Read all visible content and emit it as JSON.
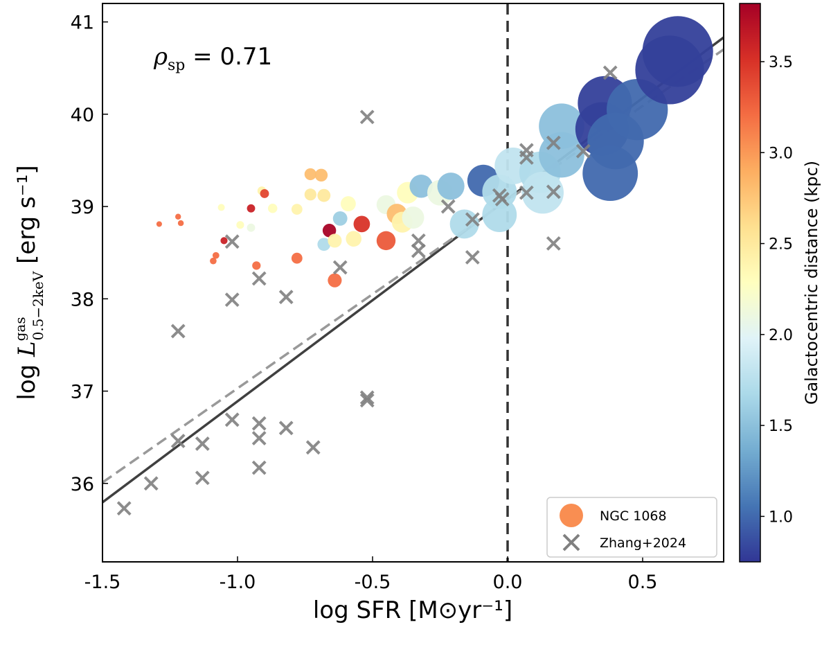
{
  "chart_data": {
    "type": "scatter",
    "xlabel": "log SFR [M⊙yr⁻¹]",
    "ylabel": "log L^gas_0.5−2keV [erg s⁻¹]",
    "xlim": [
      -1.5,
      0.8
    ],
    "ylim": [
      35.15,
      41.2
    ],
    "xticks": [
      "-1.5",
      "-1.0",
      "-0.5",
      "0.0",
      "0.5"
    ],
    "yticks": [
      "36",
      "37",
      "38",
      "39",
      "40",
      "41"
    ],
    "grid": false,
    "annotation": "ρsp = 0.71",
    "annotation_parts": {
      "rho": "ρ",
      "sub": "sp",
      "rest": " = 0.71"
    },
    "legend_position": "bottom-right",
    "colorbar": {
      "label": "Galactocentric distance (kpc)",
      "range": [
        0.75,
        3.82
      ],
      "ticks": [
        "1.0",
        "1.5",
        "2.0",
        "2.5",
        "3.0",
        "3.5"
      ],
      "colormap": "RdYlBu_r"
    },
    "reference_line_x": 0.0,
    "series": [
      {
        "name": "NGC 1068",
        "marker": "circle",
        "legend_color": "#f98e52",
        "points": [
          {
            "x": -1.29,
            "y": 38.81,
            "d": 3.2
          },
          {
            "x": -1.22,
            "y": 38.89,
            "d": 3.2
          },
          {
            "x": -1.21,
            "y": 38.82,
            "d": 3.2
          },
          {
            "x": -1.06,
            "y": 38.99,
            "d": 2.3
          },
          {
            "x": -0.99,
            "y": 38.8,
            "d": 2.3
          },
          {
            "x": -0.95,
            "y": 38.77,
            "d": 2.1
          },
          {
            "x": -0.95,
            "y": 38.98,
            "d": 3.6
          },
          {
            "x": -0.91,
            "y": 39.17,
            "d": 2.4
          },
          {
            "x": -0.9,
            "y": 39.14,
            "d": 3.4
          },
          {
            "x": -0.87,
            "y": 38.98,
            "d": 2.3
          },
          {
            "x": -0.78,
            "y": 38.97,
            "d": 2.4
          },
          {
            "x": -1.05,
            "y": 38.63,
            "d": 3.6
          },
          {
            "x": -1.08,
            "y": 38.47,
            "d": 3.2
          },
          {
            "x": -1.09,
            "y": 38.41,
            "d": 3.2
          },
          {
            "x": -0.93,
            "y": 38.36,
            "d": 3.2
          },
          {
            "x": -0.78,
            "y": 38.44,
            "d": 3.2
          },
          {
            "x": -0.73,
            "y": 39.35,
            "d": 2.8
          },
          {
            "x": -0.69,
            "y": 39.34,
            "d": 2.8
          },
          {
            "x": -0.73,
            "y": 39.13,
            "d": 2.5
          },
          {
            "x": -0.68,
            "y": 39.12,
            "d": 2.5
          },
          {
            "x": -0.59,
            "y": 39.03,
            "d": 2.3
          },
          {
            "x": -0.66,
            "y": 38.74,
            "d": 3.8
          },
          {
            "x": -0.62,
            "y": 38.87,
            "d": 1.6
          },
          {
            "x": -0.68,
            "y": 38.59,
            "d": 1.7
          },
          {
            "x": -0.64,
            "y": 38.63,
            "d": 2.4
          },
          {
            "x": -0.57,
            "y": 38.65,
            "d": 2.4
          },
          {
            "x": -0.54,
            "y": 38.81,
            "d": 3.5
          },
          {
            "x": -0.45,
            "y": 38.63,
            "d": 3.3
          },
          {
            "x": -0.64,
            "y": 38.2,
            "d": 3.2
          },
          {
            "x": -0.45,
            "y": 39.02,
            "d": 2.1
          },
          {
            "x": -0.41,
            "y": 38.92,
            "d": 2.8
          },
          {
            "x": -0.39,
            "y": 38.83,
            "d": 2.4
          },
          {
            "x": -0.37,
            "y": 39.15,
            "d": 2.3
          },
          {
            "x": -0.35,
            "y": 38.88,
            "d": 2.1
          },
          {
            "x": -0.32,
            "y": 39.22,
            "d": 1.5
          },
          {
            "x": -0.25,
            "y": 39.15,
            "d": 2.1
          },
          {
            "x": -0.21,
            "y": 39.22,
            "d": 1.5
          },
          {
            "x": -0.09,
            "y": 39.28,
            "d": 1.0
          },
          {
            "x": -0.16,
            "y": 38.81,
            "d": 1.7
          },
          {
            "x": -0.03,
            "y": 39.16,
            "d": 1.7
          },
          {
            "x": -0.03,
            "y": 38.91,
            "d": 1.7
          },
          {
            "x": 0.02,
            "y": 39.44,
            "d": 1.8
          },
          {
            "x": 0.12,
            "y": 39.37,
            "d": 1.7
          },
          {
            "x": 0.13,
            "y": 39.15,
            "d": 1.8
          },
          {
            "x": 0.2,
            "y": 39.87,
            "d": 1.5
          },
          {
            "x": 0.2,
            "y": 39.56,
            "d": 1.5
          },
          {
            "x": 0.36,
            "y": 40.12,
            "d": 0.8
          },
          {
            "x": 0.35,
            "y": 39.84,
            "d": 0.8
          },
          {
            "x": 0.48,
            "y": 40.05,
            "d": 1.0
          },
          {
            "x": 0.4,
            "y": 39.71,
            "d": 1.0
          },
          {
            "x": 0.38,
            "y": 39.36,
            "d": 1.0
          },
          {
            "x": 0.6,
            "y": 40.48,
            "d": 0.8
          },
          {
            "x": 0.63,
            "y": 40.68,
            "d": 0.8
          }
        ]
      },
      {
        "name": "Zhang+2024",
        "marker": "x",
        "color": "#808080",
        "points": [
          {
            "x": -0.52,
            "y": 39.97
          },
          {
            "x": -1.02,
            "y": 38.62
          },
          {
            "x": -0.92,
            "y": 38.22
          },
          {
            "x": -1.02,
            "y": 37.99
          },
          {
            "x": -0.82,
            "y": 38.02
          },
          {
            "x": -1.22,
            "y": 37.65
          },
          {
            "x": -0.62,
            "y": 38.34
          },
          {
            "x": 0.38,
            "y": 40.45
          },
          {
            "x": -0.22,
            "y": 39.0
          },
          {
            "x": -0.13,
            "y": 38.86
          },
          {
            "x": -0.33,
            "y": 38.63
          },
          {
            "x": -0.33,
            "y": 38.52
          },
          {
            "x": -0.13,
            "y": 38.45
          },
          {
            "x": -0.03,
            "y": 39.12
          },
          {
            "x": -0.02,
            "y": 39.08
          },
          {
            "x": 0.07,
            "y": 39.61
          },
          {
            "x": 0.07,
            "y": 39.53
          },
          {
            "x": 0.17,
            "y": 39.69
          },
          {
            "x": 0.28,
            "y": 39.6
          },
          {
            "x": 0.07,
            "y": 39.15
          },
          {
            "x": 0.17,
            "y": 39.16
          },
          {
            "x": 0.17,
            "y": 38.6
          },
          {
            "x": -0.52,
            "y": 36.93
          },
          {
            "x": -0.52,
            "y": 36.9
          },
          {
            "x": -1.02,
            "y": 36.69
          },
          {
            "x": -1.22,
            "y": 36.46
          },
          {
            "x": -1.13,
            "y": 36.43
          },
          {
            "x": -0.92,
            "y": 36.65
          },
          {
            "x": -0.92,
            "y": 36.49
          },
          {
            "x": -0.92,
            "y": 36.17
          },
          {
            "x": -0.82,
            "y": 36.6
          },
          {
            "x": -0.72,
            "y": 36.39
          },
          {
            "x": -1.13,
            "y": 36.06
          },
          {
            "x": -1.32,
            "y": 36.0
          },
          {
            "x": -1.42,
            "y": 35.73
          }
        ]
      }
    ],
    "fit_lines": [
      {
        "style": "solid",
        "color": "#404040",
        "slope": 2.19,
        "intercept": 39.08
      },
      {
        "style": "dashed",
        "color": "#999999",
        "slope": 2.04,
        "intercept": 39.07
      }
    ]
  }
}
